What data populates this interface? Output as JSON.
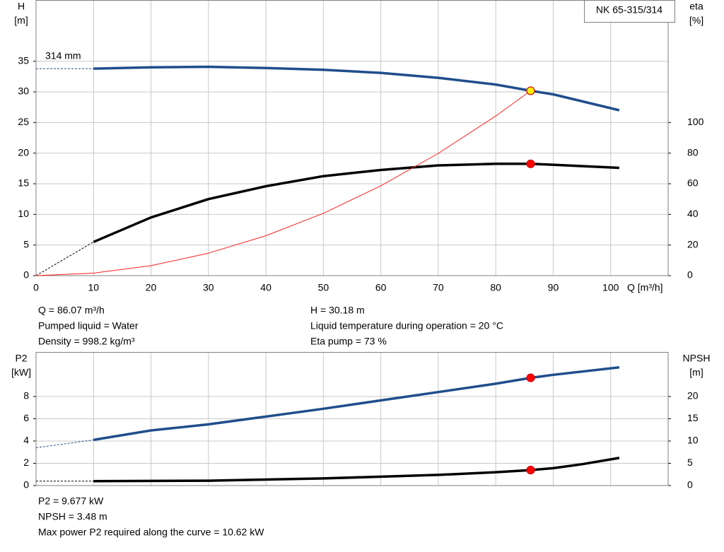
{
  "chart_data": [
    {
      "type": "line",
      "title": "NK 65-315/314",
      "x_label": "Q [m³/h]",
      "y_label": "H",
      "y_unit": "[m]",
      "y2_label": "eta",
      "y2_unit": "[%]",
      "annotation": "314 mm",
      "xlim": [
        0,
        110
      ],
      "xticks": [
        0,
        10,
        20,
        30,
        40,
        50,
        60,
        70,
        80,
        90,
        100
      ],
      "ylim": [
        0,
        45
      ],
      "yticks": [
        0,
        5,
        10,
        15,
        20,
        25,
        30,
        35
      ],
      "y2lim": [
        0,
        180
      ],
      "y2ticks": [
        0,
        20,
        40,
        60,
        80,
        100
      ],
      "grid": true,
      "series": [
        {
          "style": "dashed",
          "color": "#1f4e8c",
          "x": [
            0,
            10
          ],
          "values": [
            33.8,
            33.8
          ]
        },
        {
          "style": "solid",
          "color": "#1f4e8c",
          "x": [
            10,
            20,
            30,
            40,
            50,
            60,
            70,
            80,
            86.07,
            90,
            101.5
          ],
          "values": [
            33.8,
            34,
            34.1,
            33.9,
            33.6,
            33.1,
            32.3,
            31.2,
            30.18,
            29.6,
            27
          ]
        },
        {
          "style": "dashed",
          "color": "#000000",
          "axis": "y2",
          "x": [
            0,
            10
          ],
          "values": [
            0,
            22
          ]
        },
        {
          "style": "solid",
          "color": "#000000",
          "axis": "y2",
          "x": [
            10,
            20,
            30,
            40,
            50,
            60,
            70,
            80,
            86.07,
            90,
            101.5
          ],
          "values": [
            22,
            38,
            50,
            58.4,
            65,
            69,
            72,
            73,
            73,
            72.4,
            70.4
          ]
        },
        {
          "style": "thin",
          "color": "#ff2020",
          "x": [
            0,
            10,
            20,
            30,
            40,
            50,
            60,
            70,
            80,
            86.07
          ],
          "values": [
            0,
            0.41,
            1.63,
            3.67,
            6.52,
            10.18,
            14.67,
            19.96,
            26.07,
            30.18
          ]
        },
        {
          "style": "point",
          "color": "#ffee00",
          "x": [
            86.07
          ],
          "values": [
            30.18
          ]
        },
        {
          "style": "point",
          "color": "#ff0000",
          "axis": "y2",
          "x": [
            86.07
          ],
          "values": [
            73
          ]
        }
      ],
      "info_left": [
        "Q = 86.07 m³/h",
        "Pumped liquid = Water",
        "Density = 998.2 kg/m³"
      ],
      "info_right": [
        "H = 30.18 m",
        "Liquid temperature during operation = 20 °C",
        "Eta pump = 73 %"
      ]
    },
    {
      "type": "line",
      "y_label": "P2",
      "y_unit": "[kW]",
      "y2_label": "NPSH",
      "y2_unit": "[m]",
      "xlim": [
        0,
        110
      ],
      "ylim": [
        0,
        12
      ],
      "yticks": [
        0,
        2,
        4,
        6,
        8
      ],
      "y2lim": [
        0,
        30
      ],
      "y2ticks": [
        0,
        5,
        10,
        15,
        20
      ],
      "grid": true,
      "series": [
        {
          "style": "dashed",
          "color": "#1f4e8c",
          "x": [
            0,
            10
          ],
          "values": [
            3.4,
            4.1
          ]
        },
        {
          "style": "solid",
          "color": "#1f4e8c",
          "x": [
            10,
            20,
            30,
            40,
            50,
            60,
            70,
            80,
            86.07,
            90,
            101.5
          ],
          "values": [
            4.1,
            4.95,
            5.5,
            6.2,
            6.9,
            7.65,
            8.4,
            9.15,
            9.677,
            9.95,
            10.62
          ]
        },
        {
          "style": "dashed",
          "color": "#000000",
          "axis": "y2",
          "x": [
            0,
            10
          ],
          "values": [
            1,
            1
          ]
        },
        {
          "style": "solid",
          "color": "#000000",
          "axis": "y2",
          "x": [
            10,
            30,
            50,
            70,
            80,
            86.07,
            90,
            95,
            101.5
          ],
          "values": [
            1,
            1.1,
            1.6,
            2.4,
            3,
            3.48,
            3.9,
            4.8,
            6.2
          ]
        },
        {
          "style": "point",
          "color": "#ff0000",
          "x": [
            86.07
          ],
          "values": [
            9.677
          ]
        },
        {
          "style": "point",
          "color": "#ff0000",
          "axis": "y2",
          "x": [
            86.07
          ],
          "values": [
            3.48
          ]
        }
      ],
      "info_left": [
        "P2 = 9.677 kW",
        "NPSH = 3.48 m",
        "Max power P2 required along the curve = 10.62 kW"
      ]
    }
  ]
}
